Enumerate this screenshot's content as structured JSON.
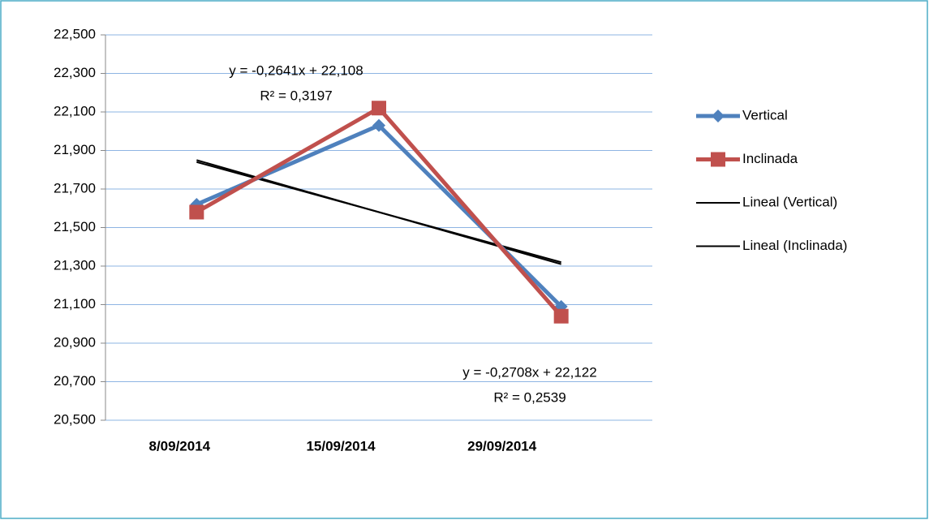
{
  "chart_data": {
    "type": "line",
    "categories": [
      "8/09/2014",
      "15/09/2014",
      "29/09/2014"
    ],
    "series": [
      {
        "name": "Vertical",
        "color": "#4f81bd",
        "marker": "diamond",
        "values": [
          21.62,
          22.03,
          21.09
        ]
      },
      {
        "name": "Inclinada",
        "color": "#c0504d",
        "marker": "square",
        "values": [
          21.58,
          22.12,
          21.04
        ]
      },
      {
        "name": "Lineal (Vertical)",
        "color": "#000000",
        "marker": "none",
        "values": [
          21.84,
          21.58,
          21.32
        ]
      },
      {
        "name": "Lineal (Inclinada)",
        "color": "#000000",
        "marker": "none",
        "values": [
          21.85,
          21.58,
          21.31
        ]
      }
    ],
    "annotations": [
      {
        "text": "y = -0,2641x + 22,108"
      },
      {
        "text": "R² = 0,3197"
      },
      {
        "text": "y = -0,2708x + 22,122"
      },
      {
        "text": "R² = 0,2539"
      }
    ],
    "ylim": [
      20.5,
      22.5
    ],
    "yticks": [
      {
        "value": 20.5,
        "label": "20,500"
      },
      {
        "value": 20.7,
        "label": "20,700"
      },
      {
        "value": 20.9,
        "label": "20,900"
      },
      {
        "value": 21.1,
        "label": "21,100"
      },
      {
        "value": 21.3,
        "label": "21,300"
      },
      {
        "value": 21.5,
        "label": "21,500"
      },
      {
        "value": 21.7,
        "label": "21,700"
      },
      {
        "value": 21.9,
        "label": "21,900"
      },
      {
        "value": 22.1,
        "label": "22,100"
      },
      {
        "value": 22.3,
        "label": "22,300"
      },
      {
        "value": 22.5,
        "label": "22,500"
      }
    ],
    "grid": true,
    "legend": "right"
  }
}
